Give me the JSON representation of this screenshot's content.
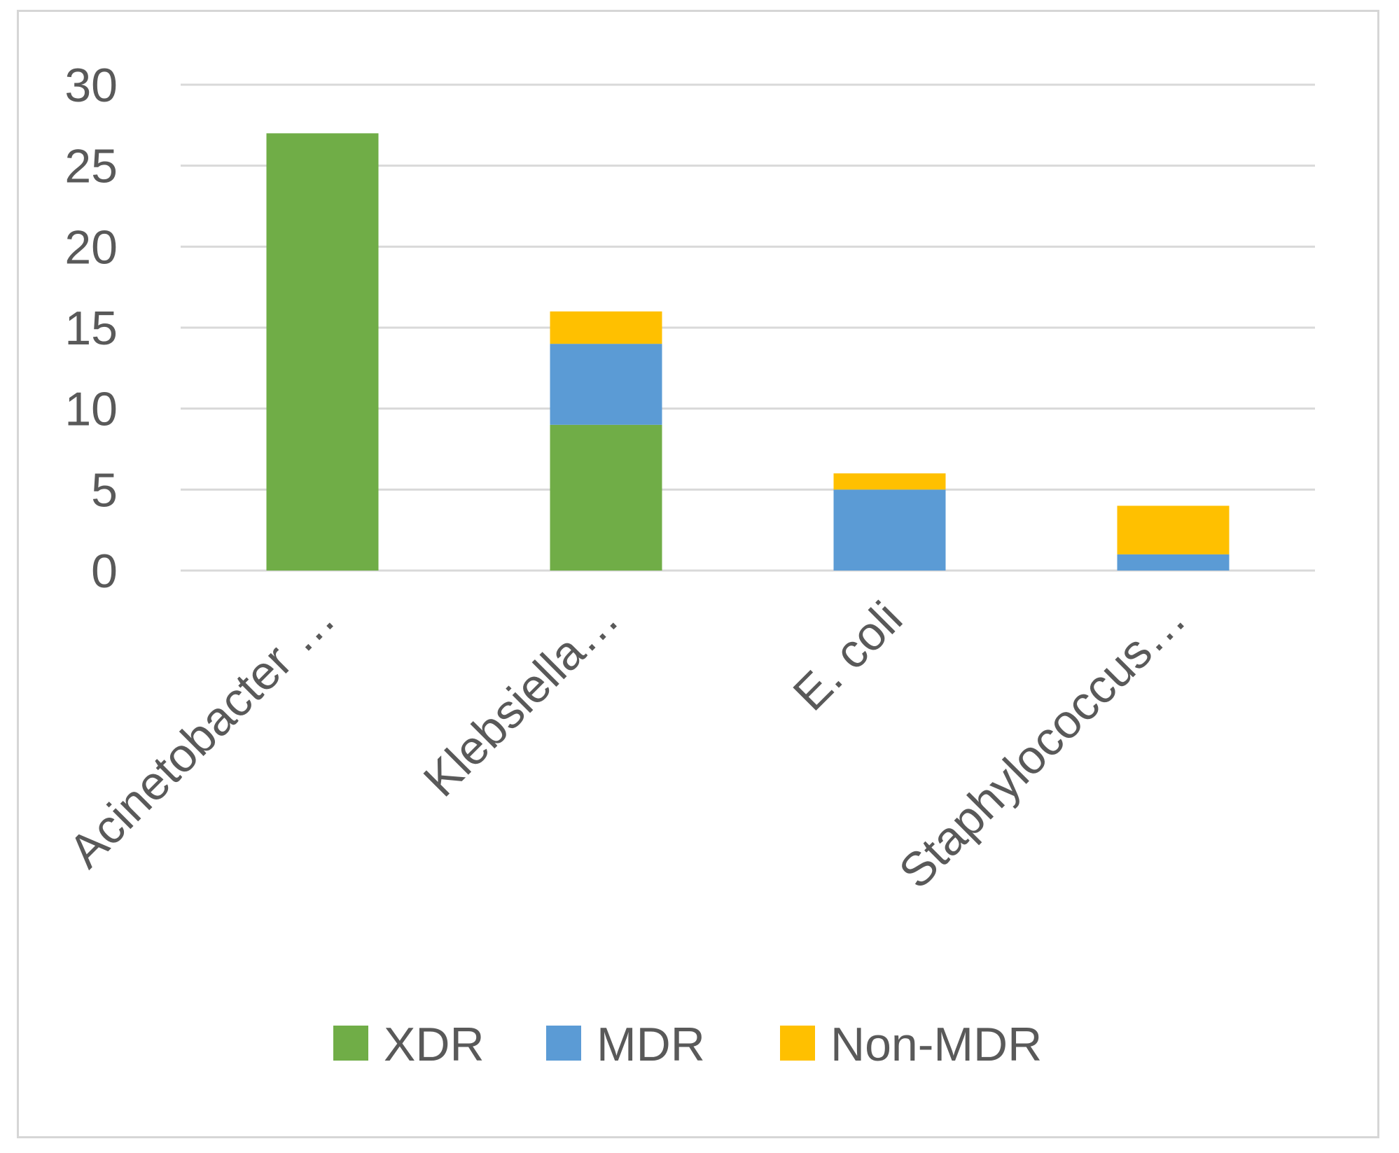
{
  "chart_data": {
    "type": "bar",
    "stacked": true,
    "categories": [
      "Acinetobacter …",
      "Klebsiella…",
      "E. coli",
      "Staphylococcus…"
    ],
    "series": [
      {
        "name": "XDR",
        "values": [
          27,
          9,
          0,
          0
        ],
        "color": "#70ad47"
      },
      {
        "name": "MDR",
        "values": [
          0,
          5,
          5,
          1
        ],
        "color": "#5b9bd5"
      },
      {
        "name": "Non-MDR",
        "values": [
          0,
          2,
          1,
          3
        ],
        "color": "#ffc000"
      }
    ],
    "ylim": [
      0,
      30
    ],
    "yticks": [
      0,
      5,
      10,
      15,
      20,
      25,
      30
    ],
    "grid": true,
    "legend_position": "bottom",
    "category_label_rotation": -45
  }
}
